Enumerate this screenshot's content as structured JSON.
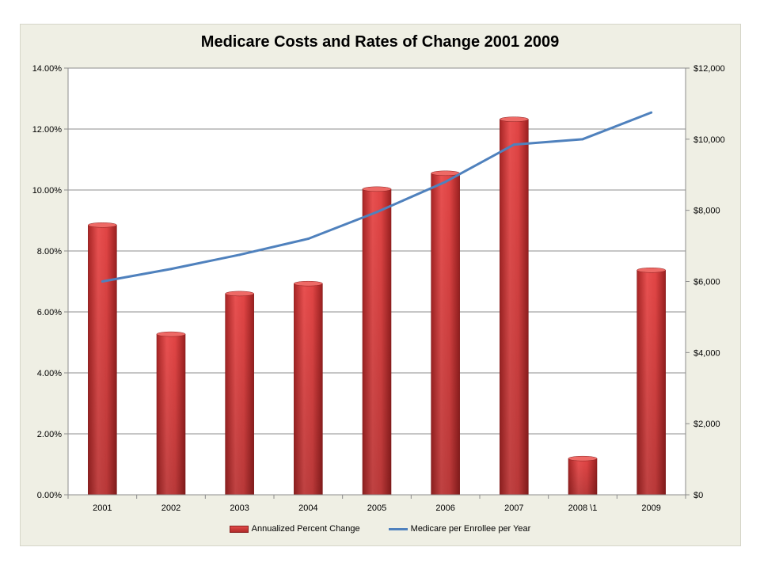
{
  "chart_data": {
    "type": "bar+line",
    "title": "Medicare Costs and Rates of Change 2001 2009",
    "categories": [
      "2001",
      "2002",
      "2003",
      "2004",
      "2005",
      "2006",
      "2007",
      "2008 \\1",
      "2009"
    ],
    "series": [
      {
        "name": "Annualized Percent Change",
        "type": "bar",
        "axis": "left",
        "color": "#d83a3a",
        "values": [
          8.85,
          5.27,
          6.6,
          6.93,
          10.03,
          10.55,
          12.32,
          1.19,
          7.37
        ]
      },
      {
        "name": "Medicare per Enrollee per Year",
        "type": "line",
        "axis": "right",
        "color": "#4f81bd",
        "values": [
          6000,
          6350,
          6750,
          7200,
          7950,
          8800,
          9850,
          10000,
          10750
        ]
      }
    ],
    "y_left": {
      "range": [
        0,
        14
      ],
      "ticks": [
        0,
        2,
        4,
        6,
        8,
        10,
        12,
        14
      ],
      "tick_labels": [
        "0.00%",
        "2.00%",
        "4.00%",
        "6.00%",
        "8.00%",
        "10.00%",
        "12.00%",
        "14.00%"
      ]
    },
    "y_right": {
      "range": [
        0,
        12000
      ],
      "ticks": [
        0,
        2000,
        4000,
        6000,
        8000,
        10000,
        12000
      ],
      "tick_labels": [
        "$0",
        "$2,000",
        "$4,000",
        "$6,000",
        "$8,000",
        "$10,000",
        "$12,000"
      ]
    },
    "grid": true,
    "legend_position": "bottom"
  }
}
